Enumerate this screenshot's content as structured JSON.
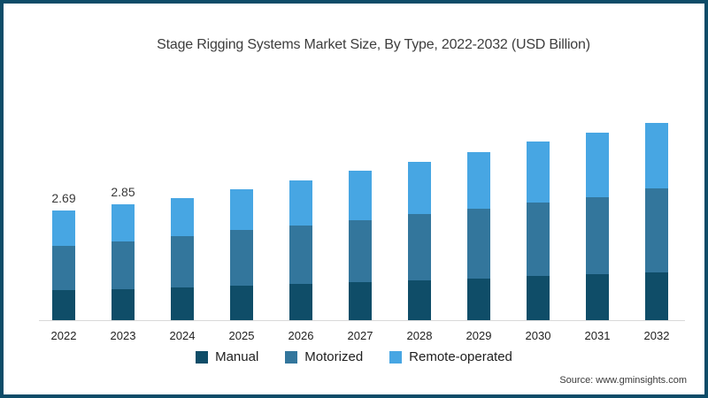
{
  "colors": {
    "frame_border": "#0e4c68",
    "axis_line": "#d9d9d9",
    "manual": "#0f4d68",
    "motorized": "#33769c",
    "remote_operated": "#47a6e3"
  },
  "chart_data": {
    "type": "bar",
    "stacked": true,
    "title": "Stage Rigging Systems Market Size, By Type, 2022-2032 (USD Billion)",
    "categories": [
      "2022",
      "2023",
      "2024",
      "2025",
      "2026",
      "2027",
      "2028",
      "2029",
      "2030",
      "2031",
      "2032"
    ],
    "series": [
      {
        "name": "Manual",
        "color": "#0f4d68",
        "values": [
          0.73,
          0.77,
          0.81,
          0.85,
          0.89,
          0.94,
          0.98,
          1.03,
          1.08,
          1.12,
          1.17
        ]
      },
      {
        "name": "Motorized",
        "color": "#33769c",
        "values": [
          1.09,
          1.17,
          1.27,
          1.36,
          1.43,
          1.52,
          1.63,
          1.71,
          1.81,
          1.9,
          2.07
        ]
      },
      {
        "name": "Remote-operated",
        "color": "#47a6e3",
        "values": [
          0.87,
          0.91,
          0.94,
          1.01,
          1.11,
          1.21,
          1.29,
          1.4,
          1.49,
          1.58,
          1.61
        ]
      }
    ],
    "totals_estimated": [
      2.69,
      2.85,
      3.02,
      3.22,
      3.43,
      3.67,
      3.9,
      4.14,
      4.38,
      4.6,
      4.85
    ],
    "value_labels": {
      "2022": "2.69",
      "2023": "2.85"
    },
    "ylim": [
      0,
      5
    ],
    "grid": false,
    "legend_position": "bottom"
  },
  "source": "Source: www.gminsights.com"
}
